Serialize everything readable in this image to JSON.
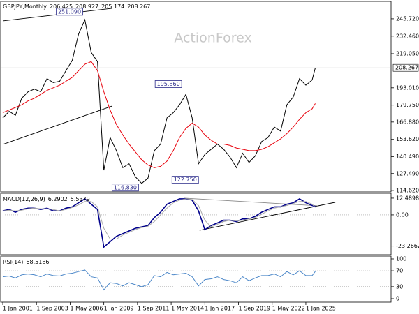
{
  "chart_data": {
    "type": "line",
    "title": "GBPJPY,Monthly",
    "header_values": [
      206.425,
      208.927,
      205.174
    ],
    "watermark": "ActionForex",
    "x": [
      "2001-01",
      "2001-07",
      "2002-01",
      "2002-07",
      "2003-01",
      "2003-07",
      "2004-01",
      "2004-07",
      "2005-01",
      "2005-07",
      "2006-01",
      "2006-07",
      "2007-01",
      "2007-07",
      "2008-01",
      "2008-07",
      "2009-01",
      "2009-07",
      "2010-01",
      "2010-07",
      "2011-01",
      "2011-07",
      "2012-01",
      "2012-07",
      "2013-01",
      "2013-07",
      "2014-01",
      "2014-07",
      "2015-01",
      "2015-07",
      "2016-01",
      "2016-07",
      "2017-01",
      "2017-07",
      "2018-01",
      "2018-07",
      "2019-01",
      "2019-07",
      "2020-01",
      "2020-07",
      "2021-01",
      "2021-07",
      "2022-01",
      "2022-07",
      "2023-01",
      "2023-07",
      "2024-01",
      "2024-07",
      "2025-01",
      "2025-07",
      "2025-10"
    ],
    "xlim": [
      "2000-11",
      "2031-10"
    ],
    "xticks": [
      {
        "value": "2001-01",
        "label": "1 Jan 2001"
      },
      {
        "value": "2003-09",
        "label": "1 Sep 2003"
      },
      {
        "value": "2006-05",
        "label": "1 May 2006"
      },
      {
        "value": "2009-01",
        "label": "1 Jan 2009"
      },
      {
        "value": "2011-09",
        "label": "1 Sep 2011"
      },
      {
        "value": "2014-05",
        "label": "1 May 2014"
      },
      {
        "value": "2017-01",
        "label": "1 Jan 2017"
      },
      {
        "value": "2019-09",
        "label": "1 Sep 2019"
      },
      {
        "value": "2022-05",
        "label": "1 May 2022"
      },
      {
        "value": "2025-01",
        "label": "1 Jan 2025"
      }
    ],
    "panels": [
      {
        "ylim": [
          113.5,
          259
        ],
        "yticks": [
          {
            "value": 114.62,
            "label": "114.620"
          },
          {
            "value": 127.49,
            "label": "127.490"
          },
          {
            "value": 140.49,
            "label": "140.490"
          },
          {
            "value": 153.62,
            "label": "153.620"
          },
          {
            "value": 166.88,
            "label": "166.880"
          },
          {
            "value": 179.75,
            "label": "179.750"
          },
          {
            "value": 193.01,
            "label": "193.010"
          },
          {
            "value": 219.05,
            "label": "219.050"
          },
          {
            "value": 232.46,
            "label": "232.460"
          },
          {
            "value": 245.72,
            "label": "245.720"
          }
        ],
        "series": [
          {
            "color": "#000000",
            "values": [
              170,
              175,
              172,
              185,
              190,
              192,
              190,
              200,
              197,
              198,
              206,
              214,
              234,
              245,
              220,
              213,
              130,
              155,
              145,
              132,
              135,
              125,
              120,
              124,
              145,
              150,
              170,
              174,
              180,
              188,
              170,
              135,
              142,
              146,
              150,
              146,
              140,
              132,
              143,
              136,
              141,
              152,
              155,
              163,
              160,
              180,
              186,
              200,
              195,
              199,
              208.267
            ]
          },
          {
            "color": "#e8000b",
            "values": [
              174,
              176,
              178,
              180,
              183,
              185,
              188,
              191,
              193,
              195,
              198,
              201,
              206,
              211,
              213,
              206,
              190,
              176,
              165,
              157,
              150,
              144,
              138,
              134,
              132,
              133,
              137,
              145,
              155,
              162,
              166,
              163,
              157,
              153,
              150,
              150,
              149,
              147,
              146,
              145,
              145,
              146,
              148,
              151,
              154,
              158,
              163,
              169,
              174,
              177,
              181
            ]
          }
        ],
        "trendlines": [
          {
            "x": [
              "2001-01",
              "2009-09"
            ],
            "y": [
              244.1,
              253.7
            ]
          },
          {
            "x": [
              "2001-01",
              "2009-09"
            ],
            "y": [
              149.8,
              179.1
            ]
          }
        ],
        "annotations": [
          {
            "x": "2007-05",
            "value": 251.09,
            "label": "251.090"
          },
          {
            "x": "2015-03",
            "value": 195.86,
            "label": "195.860"
          },
          {
            "x": "2011-10",
            "value": 116.83,
            "label": "116.830"
          },
          {
            "x": "2016-07",
            "value": 122.75,
            "label": "122.750"
          }
        ]
      },
      {
        "title": "MACD(12,26,9)",
        "ylim": [
          -29.7,
          16.1
        ],
        "yticks": [
          {
            "value": 12.4898,
            "label": "12.4898"
          },
          {
            "value": 0,
            "label": "0.00"
          },
          {
            "value": -23.2662,
            "label": "-23.2662"
          }
        ],
        "levels": [
          0
        ],
        "series": [
          {
            "color": "#00008b",
            "values": [
              3,
              4,
              2,
              4,
              5,
              5,
              4,
              5,
              3,
              3,
              5,
              6,
              9,
              12,
              8,
              4,
              -24,
              -20,
              -16,
              -14,
              -12,
              -10,
              -9,
              -8,
              -2,
              2,
              8,
              10,
              12,
              12,
              11,
              3,
              -11,
              -8,
              -6,
              -4,
              -4,
              -5,
              -3,
              -3,
              -1,
              2,
              4,
              6,
              6,
              8,
              9,
              12,
              9,
              7,
              6.2902
            ]
          },
          {
            "color": "#aaaaaa",
            "values": [
              3,
              3.5,
              3,
              3.5,
              4.5,
              5,
              4.5,
              4.5,
              4,
              3,
              4,
              5.5,
              7.5,
              10,
              10,
              6,
              -10,
              -18,
              -18,
              -15,
              -13,
              -11,
              -9.5,
              -8.5,
              -5,
              0,
              5,
              9,
              11,
              12,
              11.5,
              7,
              -4,
              -9,
              -7,
              -5,
              -4,
              -4.5,
              -4,
              -3,
              -2,
              0.5,
              3,
              5,
              6,
              7,
              8.5,
              10,
              10,
              8,
              5.5379
            ]
          }
        ],
        "trendlines": [
          {
            "x": [
              "2016-08",
              "2027-05"
            ],
            "y": [
              -11.5,
              9.4
            ]
          },
          {
            "x": [
              "2015-05",
              "2026-01"
            ],
            "y": [
              12.5,
              6.77
            ]
          }
        ]
      },
      {
        "title": "RSI(14)",
        "ylim": [
          -8.8,
          107
        ],
        "yticks": [
          100,
          70,
          30,
          0
        ],
        "levels": [
          70,
          30
        ],
        "series": [
          {
            "color": "#4a86c8",
            "values": [
              55,
              57,
              52,
              60,
              62,
              60,
              55,
              62,
              58,
              57,
              62,
              64,
              68,
              72,
              55,
              52,
              22,
              40,
              38,
              32,
              40,
              35,
              30,
              35,
              58,
              55,
              66,
              60,
              62,
              64,
              55,
              32,
              48,
              50,
              55,
              48,
              45,
              40,
              55,
              45,
              52,
              58,
              58,
              62,
              55,
              68,
              60,
              70,
              58,
              58,
              68.5186
            ]
          }
        ]
      }
    ]
  }
}
